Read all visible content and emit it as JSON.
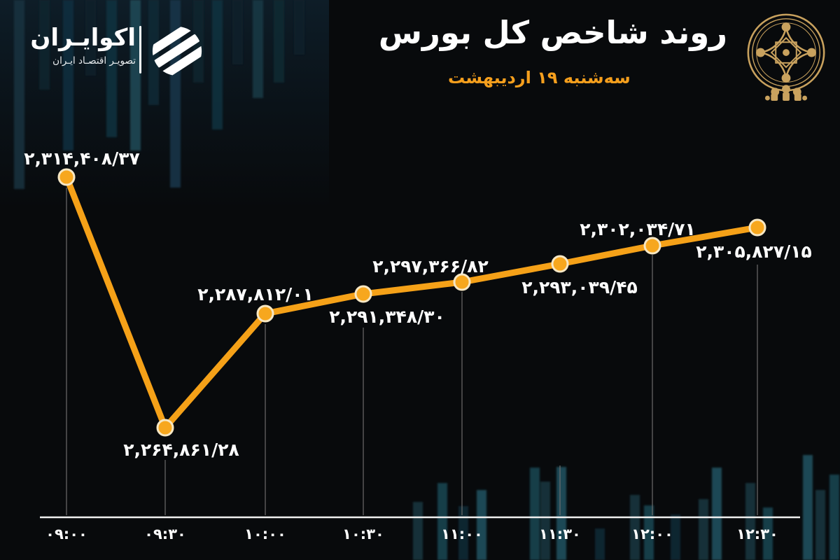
{
  "brand": {
    "name": "اکوایـران",
    "tagline": "تصویـر اقتصـاد ایـران"
  },
  "header": {
    "title": "روند شاخص کل بورس",
    "date": "سه‌شنبه ۱۹ اردیبهشت"
  },
  "chart_data": {
    "type": "line",
    "title": "روند شاخص کل بورس",
    "subtitle_date": "سه‌شنبه ۱۹ اردیبهشت",
    "x": [
      "۰۹:۰۰",
      "۰۹:۳۰",
      "۱۰:۰۰",
      "۱۰:۳۰",
      "۱۱:۰۰",
      "۱۱:۳۰",
      "۱۲:۰۰",
      "۱۲:۳۰"
    ],
    "series": [
      {
        "name": "شاخص کل بورس",
        "values": [
          2314408.37,
          2264861.28,
          2287812.01,
          2291348.3,
          2297366.82,
          2293039.45,
          2302034.71,
          2305827.15
        ]
      }
    ],
    "point_labels": [
      "۲,۳۱۴,۴۰۸/۳۷",
      "۲,۲۶۴,۸۶۱/۲۸",
      "۲,۲۸۷,۸۱۲/۰۱",
      "۲,۲۹۱,۳۴۸/۳۰",
      "۲,۲۹۷,۳۶۶/۸۲",
      "۲,۲۹۳,۰۳۹/۴۵",
      "۲,۳۰۲,۰۳۴/۷۱",
      "۲,۳۰۵,۸۲۷/۱۵"
    ],
    "label_positions": [
      "above",
      "below",
      "above",
      "below",
      "above",
      "below",
      "above",
      "below"
    ],
    "ylim": [
      2260000,
      2320000
    ],
    "line_color": "#F5A118",
    "marker_fill": "#F7A71E",
    "marker_stroke": "#F6E7C4",
    "axis_color": "#EFEFEF",
    "text_color": "#FFFFFF",
    "accent_color": "#F59F1D",
    "background_color": "#080A0C",
    "grid": "vertical drop lines per point",
    "legend": "none"
  }
}
